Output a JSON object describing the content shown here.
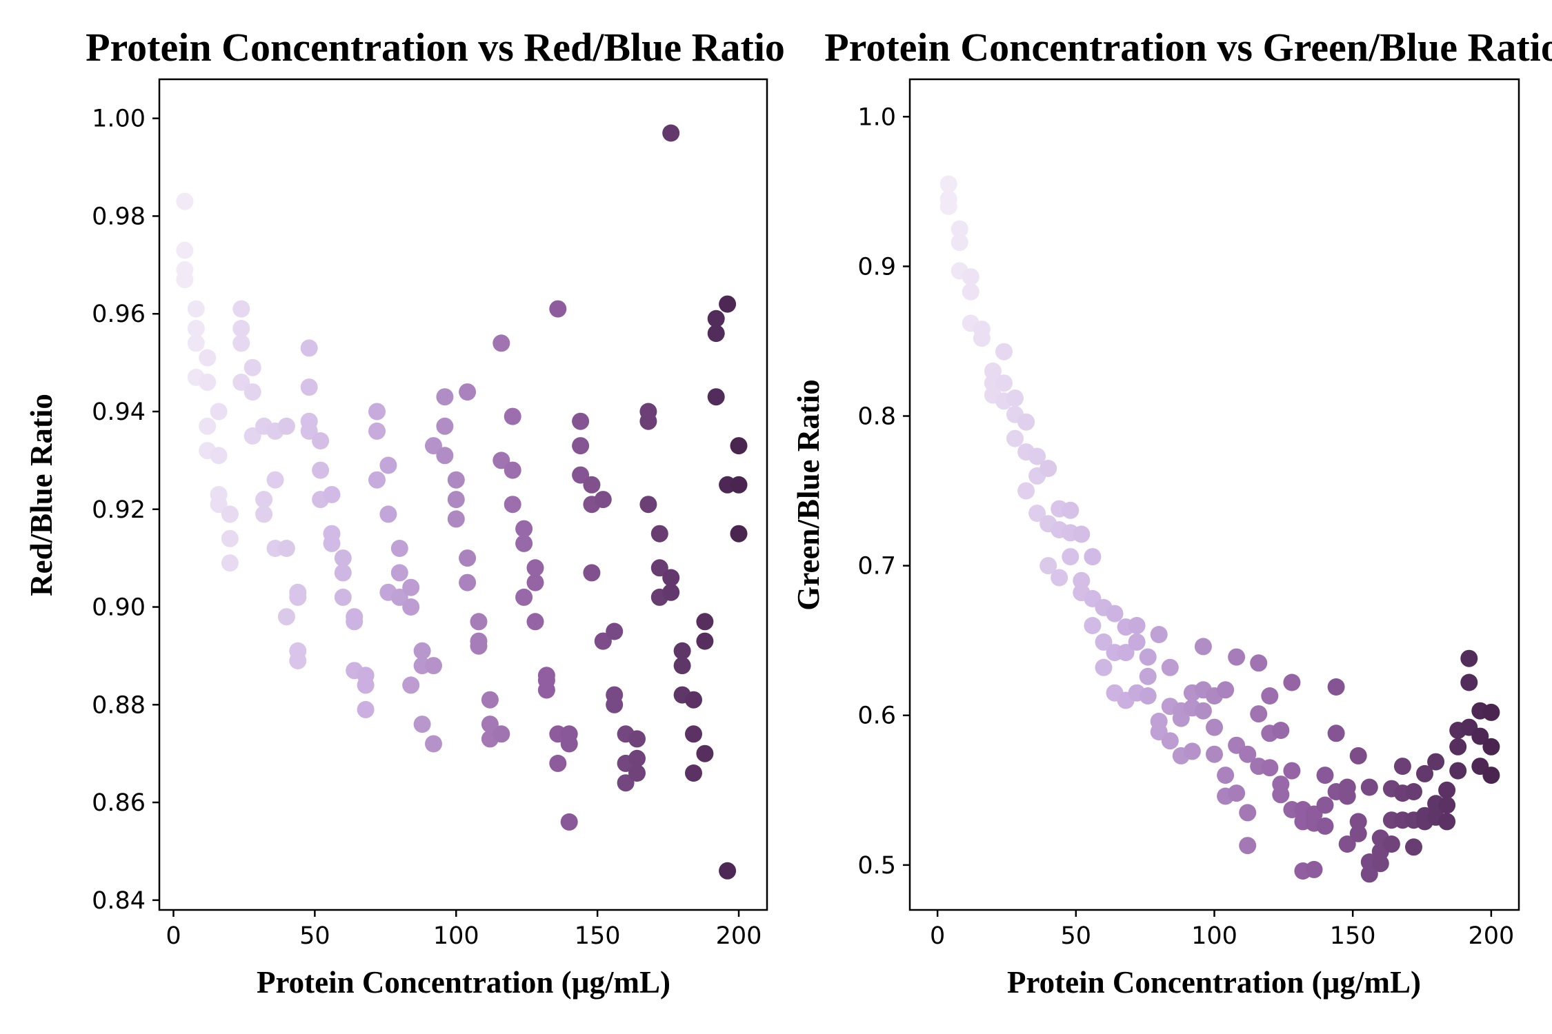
{
  "chart_data": [
    {
      "type": "scatter",
      "title": "Protein Concentration vs Red/Blue Ratio",
      "xlabel": "Protein Concentration (µg/mL)",
      "ylabel": "Red/Blue Ratio",
      "xlim": [
        -5,
        210
      ],
      "ylim": [
        0.838,
        1.008
      ],
      "xticks": [
        "0",
        "50",
        "100",
        "150",
        "200"
      ],
      "yticks": [
        "0.84",
        "0.86",
        "0.88",
        "0.90",
        "0.92",
        "0.94",
        "0.96",
        "0.98",
        "1.00"
      ],
      "colormap": [
        "#f2eaf7",
        "#c9aee0",
        "#8f5c9e",
        "#4a2550"
      ],
      "grid": false,
      "x": [
        4,
        4,
        4,
        4,
        8,
        8,
        8,
        8,
        12,
        12,
        12,
        12,
        16,
        16,
        16,
        16,
        20,
        20,
        20,
        24,
        24,
        24,
        24,
        28,
        28,
        28,
        32,
        32,
        32,
        36,
        36,
        36,
        40,
        40,
        40,
        44,
        44,
        44,
        44,
        48,
        48,
        48,
        48,
        52,
        52,
        52,
        56,
        56,
        56,
        60,
        60,
        60,
        64,
        64,
        64,
        68,
        68,
        68,
        72,
        72,
        72,
        76,
        76,
        76,
        80,
        80,
        80,
        84,
        84,
        84,
        88,
        88,
        88,
        92,
        92,
        92,
        96,
        96,
        96,
        100,
        100,
        100,
        104,
        104,
        104,
        108,
        108,
        108,
        112,
        112,
        112,
        116,
        116,
        116,
        120,
        120,
        120,
        124,
        124,
        124,
        128,
        128,
        128,
        132,
        132,
        132,
        136,
        136,
        136,
        140,
        140,
        140,
        144,
        144,
        144,
        148,
        148,
        148,
        152,
        152,
        152,
        156,
        156,
        156,
        160,
        160,
        160,
        164,
        164,
        164,
        168,
        168,
        168,
        172,
        172,
        172,
        176,
        176,
        176,
        180,
        180,
        180,
        184,
        184,
        184,
        188,
        188,
        188,
        192,
        192,
        192,
        196,
        196,
        196,
        200,
        200,
        200
      ],
      "y": [
        0.983,
        0.973,
        0.969,
        0.967,
        0.961,
        0.957,
        0.954,
        0.947,
        0.951,
        0.946,
        0.937,
        0.932,
        0.94,
        0.931,
        0.923,
        0.921,
        0.919,
        0.914,
        0.909,
        0.961,
        0.957,
        0.954,
        0.946,
        0.949,
        0.944,
        0.935,
        0.937,
        0.922,
        0.919,
        0.936,
        0.926,
        0.912,
        0.937,
        0.912,
        0.898,
        0.902,
        0.891,
        0.889,
        0.903,
        0.953,
        0.945,
        0.938,
        0.936,
        0.934,
        0.928,
        0.922,
        0.923,
        0.915,
        0.913,
        0.91,
        0.907,
        0.902,
        0.898,
        0.897,
        0.887,
        0.886,
        0.884,
        0.879,
        0.94,
        0.936,
        0.926,
        0.929,
        0.919,
        0.903,
        0.912,
        0.907,
        0.902,
        0.904,
        0.9,
        0.884,
        0.891,
        0.888,
        0.876,
        0.933,
        0.888,
        0.872,
        0.943,
        0.937,
        0.931,
        0.926,
        0.922,
        0.918,
        0.944,
        0.91,
        0.905,
        0.897,
        0.893,
        0.892,
        0.881,
        0.876,
        0.873,
        0.954,
        0.93,
        0.874,
        0.939,
        0.928,
        0.921,
        0.916,
        0.913,
        0.902,
        0.908,
        0.905,
        0.897,
        0.886,
        0.885,
        0.883,
        0.961,
        0.874,
        0.868,
        0.874,
        0.872,
        0.856,
        0.938,
        0.933,
        0.927,
        0.925,
        0.921,
        0.907,
        0.922,
        0.893,
        0.893,
        0.895,
        0.882,
        0.88,
        0.874,
        0.868,
        0.864,
        0.873,
        0.869,
        0.866,
        0.94,
        0.938,
        0.921,
        0.915,
        0.908,
        0.902,
        0.997,
        0.903,
        0.906,
        0.891,
        0.888,
        0.882,
        0.881,
        0.874,
        0.866,
        0.897,
        0.893,
        0.87,
        0.959,
        0.956,
        0.943,
        0.962,
        0.925,
        0.846,
        0.933,
        0.925,
        0.915
      ]
    },
    {
      "type": "scatter",
      "title": "Protein Concentration vs Green/Blue Ratio",
      "xlabel": "Protein Concentration (µg/mL)",
      "ylabel": "Green/Blue Ratio",
      "xlim": [
        -10,
        210
      ],
      "ylim": [
        0.47,
        1.025
      ],
      "xticks": [
        "0",
        "50",
        "100",
        "150",
        "200"
      ],
      "yticks": [
        "0.5",
        "0.6",
        "0.7",
        "0.8",
        "0.9",
        "1.0"
      ],
      "colormap": [
        "#f2eaf7",
        "#c9aee0",
        "#8f5c9e",
        "#4a2550"
      ],
      "grid": false,
      "x": [
        4,
        4,
        4,
        8,
        8,
        8,
        12,
        12,
        12,
        16,
        16,
        20,
        20,
        20,
        24,
        24,
        24,
        28,
        28,
        28,
        32,
        32,
        32,
        36,
        36,
        36,
        40,
        40,
        40,
        44,
        44,
        44,
        48,
        48,
        48,
        52,
        52,
        52,
        56,
        56,
        56,
        60,
        60,
        60,
        64,
        64,
        64,
        68,
        68,
        68,
        72,
        72,
        72,
        76,
        76,
        76,
        80,
        80,
        80,
        84,
        84,
        84,
        88,
        88,
        88,
        92,
        92,
        92,
        96,
        96,
        96,
        100,
        100,
        100,
        104,
        104,
        104,
        108,
        108,
        108,
        112,
        112,
        112,
        116,
        116,
        116,
        120,
        120,
        120,
        124,
        124,
        124,
        128,
        128,
        128,
        132,
        132,
        132,
        136,
        136,
        136,
        140,
        140,
        140,
        144,
        144,
        144,
        148,
        148,
        148,
        152,
        152,
        152,
        156,
        156,
        156,
        160,
        160,
        160,
        164,
        164,
        164,
        168,
        168,
        168,
        172,
        172,
        172,
        176,
        176,
        176,
        180,
        180,
        180,
        184,
        184,
        184,
        188,
        188,
        188,
        192,
        192,
        192,
        196,
        196,
        196,
        200,
        200,
        200
      ],
      "y": [
        0.955,
        0.945,
        0.94,
        0.925,
        0.916,
        0.897,
        0.893,
        0.883,
        0.862,
        0.858,
        0.852,
        0.822,
        0.814,
        0.83,
        0.843,
        0.822,
        0.81,
        0.812,
        0.801,
        0.785,
        0.796,
        0.776,
        0.75,
        0.773,
        0.76,
        0.735,
        0.765,
        0.728,
        0.7,
        0.738,
        0.724,
        0.692,
        0.737,
        0.722,
        0.706,
        0.721,
        0.69,
        0.682,
        0.706,
        0.678,
        0.66,
        0.672,
        0.649,
        0.632,
        0.668,
        0.642,
        0.615,
        0.659,
        0.642,
        0.61,
        0.66,
        0.649,
        0.615,
        0.639,
        0.626,
        0.613,
        0.654,
        0.596,
        0.589,
        0.632,
        0.606,
        0.583,
        0.603,
        0.598,
        0.573,
        0.615,
        0.605,
        0.576,
        0.646,
        0.617,
        0.603,
        0.613,
        0.592,
        0.574,
        0.617,
        0.56,
        0.546,
        0.639,
        0.58,
        0.548,
        0.574,
        0.535,
        0.513,
        0.635,
        0.601,
        0.566,
        0.588,
        0.565,
        0.613,
        0.59,
        0.554,
        0.547,
        0.622,
        0.563,
        0.537,
        0.537,
        0.529,
        0.496,
        0.497,
        0.534,
        0.528,
        0.56,
        0.54,
        0.526,
        0.619,
        0.588,
        0.549,
        0.552,
        0.546,
        0.514,
        0.573,
        0.529,
        0.521,
        0.552,
        0.502,
        0.494,
        0.518,
        0.509,
        0.501,
        0.551,
        0.53,
        0.514,
        0.566,
        0.548,
        0.53,
        0.549,
        0.512,
        0.53,
        0.561,
        0.533,
        0.529,
        0.569,
        0.541,
        0.532,
        0.55,
        0.54,
        0.529,
        0.579,
        0.563,
        0.59,
        0.638,
        0.622,
        0.592,
        0.603,
        0.586,
        0.566,
        0.602,
        0.579,
        0.56
      ]
    }
  ]
}
